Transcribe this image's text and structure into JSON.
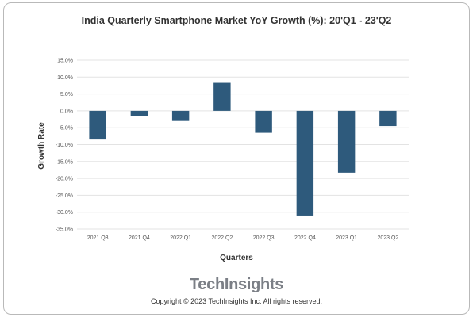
{
  "chart_data": {
    "type": "bar",
    "title": "India Quarterly Smartphone Market YoY Growth (%): 20'Q1 - 23'Q2",
    "xlabel": "Quarters",
    "ylabel": "Growth Rate",
    "categories": [
      "2021 Q3",
      "2021 Q4",
      "2022 Q1",
      "2022 Q2",
      "2022 Q3",
      "2022 Q4",
      "2023 Q1",
      "2023 Q2"
    ],
    "values": [
      -8.5,
      -1.5,
      -3.0,
      8.3,
      -6.5,
      -31.0,
      -18.3,
      -4.5
    ],
    "ylim": [
      -35,
      15
    ],
    "yticks": [
      15,
      10,
      5,
      0,
      -5,
      -10,
      -15,
      -20,
      -25,
      -30,
      -35
    ],
    "ytick_labels": [
      "15.0%",
      "10.0%",
      "5.0%",
      "0.0%",
      "-5.0%",
      "-10.0%",
      "-15.0%",
      "-20.0%",
      "-25.0%",
      "-30.0%",
      "-35.0%"
    ],
    "grid": true,
    "legend": "none",
    "bar_color": "#2e5a7c",
    "grid_color": "#e3e3e3"
  },
  "footer": {
    "brand": "TechInsights",
    "copyright": "Copyright © 2023 TechInsights Inc.  All rights reserved."
  }
}
